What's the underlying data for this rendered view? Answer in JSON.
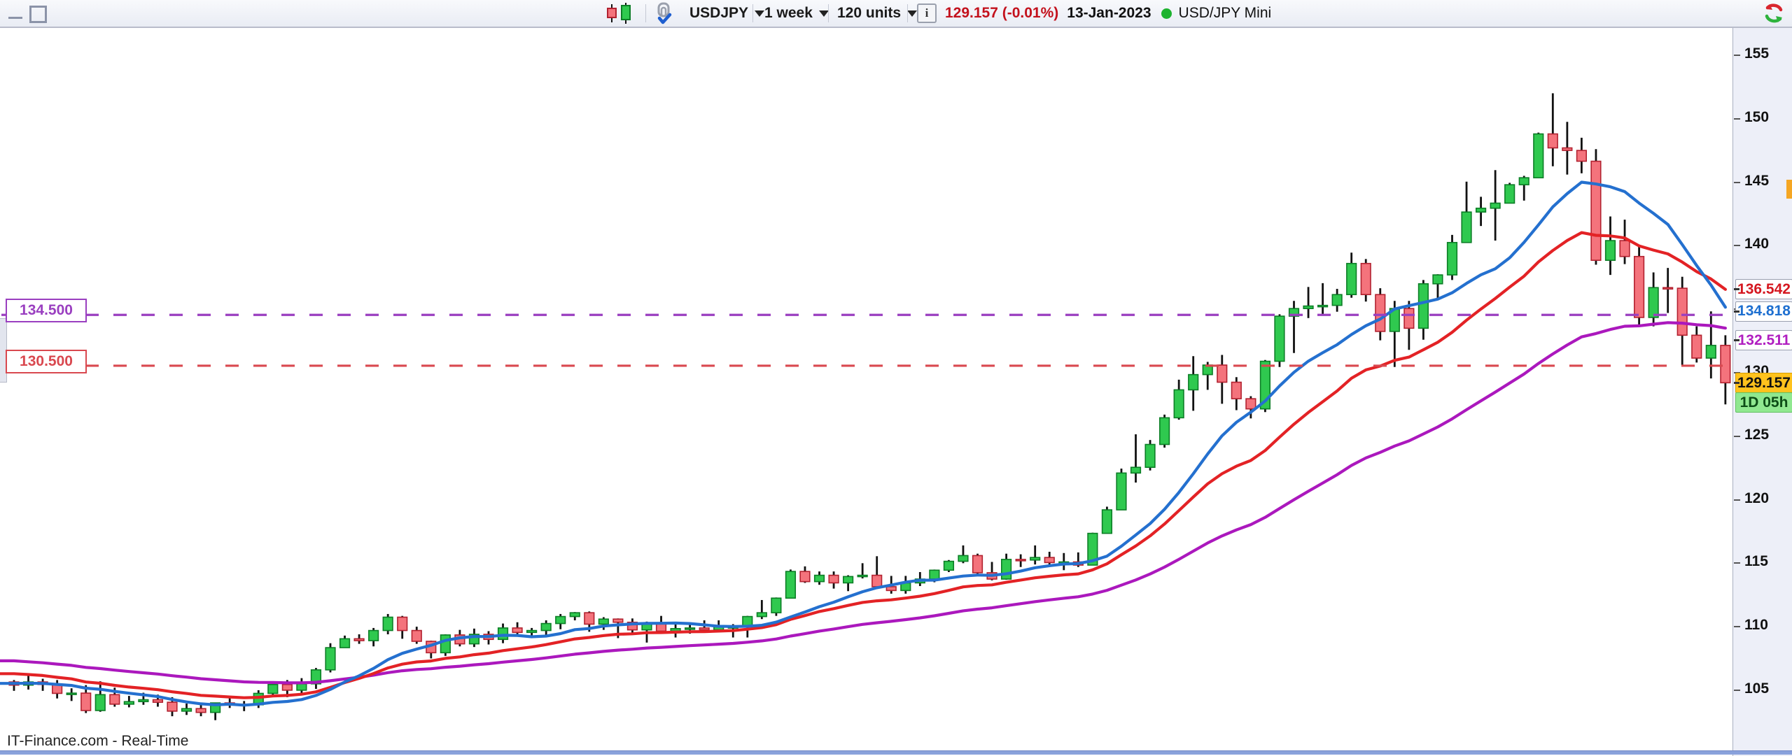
{
  "window": {
    "minimize_icon": "minimize",
    "restore_icon": "restore-window"
  },
  "toolbar": {
    "chart_type_icon": "candlestick-chart",
    "link_icon": "clip-with-check",
    "symbol_selector": {
      "label": "USDJPY"
    },
    "timeframe_selector": {
      "label": "1 week"
    },
    "units_selector": {
      "label": "120 units"
    },
    "info_icon_glyph": "i",
    "quote": {
      "price_and_change": "129.157 (-0.01%)",
      "date": "13-Jan-2023",
      "market_status_color": "#1db32f",
      "market_name": "USD/JPY Mini"
    },
    "refresh_icon": "refresh-red-green-arrows"
  },
  "price_axis": {
    "chips": [
      {
        "text": "136.542",
        "type": "ma-red",
        "text_color": "#d51820",
        "bg": "#ffffff",
        "price": 136.542
      },
      {
        "text": "134.818",
        "type": "ma-blue",
        "text_color": "#1e6fd0",
        "bg": "#ffffff",
        "price": 134.818
      },
      {
        "text": "132.511",
        "type": "ma-purple",
        "text_color": "#b01ec0",
        "bg": "#ffffff",
        "price": 132.511
      },
      {
        "text": "129.157",
        "type": "last-price",
        "text_color": "#111111",
        "bg": "#ffc21d",
        "price": 129.157
      },
      {
        "text": "1D 05h",
        "type": "countdown",
        "text_color": "#0d4d17",
        "bg": "#90e890"
      }
    ],
    "marker_color": "#f5a623"
  },
  "annotations": {
    "hlines": [
      {
        "label": "134.500",
        "price": 134.5,
        "color": "#9a3fc0"
      },
      {
        "label": "130.500",
        "price": 130.5,
        "color": "#d9484f"
      }
    ]
  },
  "footer": {
    "attribution": "IT-Finance.com - Real-Time"
  },
  "chart_data": {
    "type": "candlestick",
    "symbol": "USDJPY",
    "timeframe": "1 week",
    "units": 120,
    "last_price": 129.157,
    "title": "USD/JPY Mini weekly candlestick chart",
    "y_axis": {
      "tick_values": [
        155,
        150,
        145,
        140,
        135,
        130,
        125,
        120,
        115,
        110,
        105
      ],
      "ylim": [
        100.4,
        157.2
      ],
      "grid": false
    },
    "x_axis": {
      "labels_visible": false
    },
    "candle_colors": {
      "up_fill": "#2fc94f",
      "up_border": "#0c7e26",
      "down_fill": "#f4737c",
      "down_border": "#b22230",
      "wick": "#111111"
    },
    "moving_averages": [
      {
        "name": "fast",
        "kind": "sma",
        "period": 10,
        "color": "#2470cf",
        "seed": 105.5,
        "end_value": 134.818
      },
      {
        "name": "medium",
        "kind": "ema",
        "alpha": 0.1,
        "color": "#e32225",
        "seed": 106.35,
        "end_value": 136.542
      },
      {
        "name": "slow",
        "kind": "ema",
        "alpha": 0.044,
        "color": "#ab18bd",
        "seed": 107.35,
        "end_value": 132.511
      }
    ],
    "ohlc": [
      [
        105.6,
        105.75,
        104.9,
        105.35
      ],
      [
        105.35,
        106.1,
        105.0,
        105.6
      ],
      [
        105.6,
        105.85,
        104.9,
        105.4
      ],
      [
        105.4,
        105.75,
        104.3,
        104.7
      ],
      [
        104.7,
        105.1,
        104.1,
        104.72
      ],
      [
        104.72,
        105.35,
        103.15,
        103.35
      ],
      [
        103.35,
        105.65,
        103.25,
        104.6
      ],
      [
        104.6,
        105.15,
        103.65,
        103.85
      ],
      [
        103.85,
        104.5,
        103.6,
        104.05
      ],
      [
        104.05,
        104.75,
        103.8,
        104.2
      ],
      [
        104.2,
        104.6,
        103.65,
        104.0
      ],
      [
        104.0,
        104.4,
        102.9,
        103.3
      ],
      [
        103.3,
        103.9,
        103.0,
        103.5
      ],
      [
        103.5,
        103.85,
        102.9,
        103.2
      ],
      [
        103.2,
        103.95,
        102.59,
        103.95
      ],
      [
        103.95,
        104.4,
        103.55,
        103.85
      ],
      [
        103.85,
        104.1,
        103.3,
        103.8
      ],
      [
        103.8,
        104.95,
        103.55,
        104.7
      ],
      [
        104.7,
        105.45,
        104.55,
        105.4
      ],
      [
        105.4,
        105.75,
        104.4,
        104.95
      ],
      [
        104.95,
        105.9,
        104.55,
        105.45
      ],
      [
        105.45,
        106.7,
        105.05,
        106.55
      ],
      [
        106.55,
        108.65,
        106.35,
        108.3
      ],
      [
        108.3,
        109.25,
        108.3,
        109.0
      ],
      [
        109.0,
        109.35,
        108.6,
        108.85
      ],
      [
        108.85,
        109.85,
        108.4,
        109.65
      ],
      [
        109.65,
        110.95,
        109.35,
        110.7
      ],
      [
        110.7,
        110.8,
        109.0,
        109.65
      ],
      [
        109.65,
        109.95,
        108.6,
        108.8
      ],
      [
        108.8,
        108.85,
        107.45,
        107.9
      ],
      [
        107.9,
        109.35,
        107.65,
        109.3
      ],
      [
        109.3,
        109.7,
        108.4,
        108.6
      ],
      [
        108.6,
        109.8,
        108.35,
        109.35
      ],
      [
        109.35,
        109.6,
        108.55,
        108.95
      ],
      [
        108.95,
        110.2,
        108.65,
        109.85
      ],
      [
        109.85,
        110.3,
        109.35,
        109.5
      ],
      [
        109.5,
        109.85,
        109.2,
        109.65
      ],
      [
        109.65,
        110.45,
        109.25,
        110.2
      ],
      [
        110.2,
        110.95,
        109.75,
        110.75
      ],
      [
        110.75,
        111.1,
        110.45,
        111.05
      ],
      [
        111.05,
        111.15,
        109.55,
        110.15
      ],
      [
        110.15,
        110.7,
        109.7,
        110.55
      ],
      [
        110.55,
        110.6,
        109.05,
        110.3
      ],
      [
        110.3,
        110.6,
        109.35,
        109.7
      ],
      [
        109.7,
        110.35,
        108.7,
        110.25
      ],
      [
        110.25,
        110.8,
        109.55,
        109.6
      ],
      [
        109.6,
        110.25,
        109.1,
        109.8
      ],
      [
        109.8,
        110.25,
        109.4,
        109.85
      ],
      [
        109.85,
        110.45,
        109.6,
        109.7
      ],
      [
        109.7,
        110.45,
        109.6,
        109.95
      ],
      [
        109.95,
        110.15,
        109.1,
        109.95
      ],
      [
        109.95,
        110.8,
        109.1,
        110.75
      ],
      [
        110.75,
        112.05,
        110.55,
        111.05
      ],
      [
        111.05,
        112.25,
        110.8,
        112.2
      ],
      [
        112.2,
        114.45,
        112.2,
        114.3
      ],
      [
        114.3,
        114.7,
        113.4,
        113.5
      ],
      [
        113.5,
        114.3,
        113.25,
        114.0
      ],
      [
        114.0,
        114.3,
        112.95,
        113.4
      ],
      [
        113.4,
        114.0,
        112.75,
        113.9
      ],
      [
        113.9,
        114.95,
        113.75,
        114.0
      ],
      [
        114.0,
        115.5,
        113.05,
        113.1
      ],
      [
        113.1,
        113.95,
        112.55,
        112.8
      ],
      [
        112.8,
        113.95,
        112.55,
        113.4
      ],
      [
        113.4,
        114.25,
        113.15,
        113.7
      ],
      [
        113.7,
        114.45,
        113.45,
        114.4
      ],
      [
        114.4,
        115.2,
        114.25,
        115.1
      ],
      [
        115.1,
        116.35,
        114.95,
        115.55
      ],
      [
        115.55,
        115.7,
        113.95,
        114.2
      ],
      [
        114.2,
        115.05,
        113.6,
        113.7
      ],
      [
        113.7,
        115.7,
        113.65,
        115.25
      ],
      [
        115.25,
        115.65,
        114.65,
        115.2
      ],
      [
        115.2,
        116.35,
        114.85,
        115.4
      ],
      [
        115.4,
        115.85,
        114.8,
        115.0
      ],
      [
        115.0,
        115.75,
        114.4,
        115.05
      ],
      [
        115.05,
        115.8,
        114.65,
        114.8
      ],
      [
        114.8,
        117.35,
        114.8,
        117.3
      ],
      [
        117.3,
        119.4,
        117.3,
        119.15
      ],
      [
        119.15,
        122.4,
        119.15,
        122.05
      ],
      [
        122.05,
        125.1,
        121.3,
        122.5
      ],
      [
        122.5,
        124.65,
        122.25,
        124.3
      ],
      [
        124.3,
        126.65,
        124.05,
        126.4
      ],
      [
        126.4,
        129.4,
        126.25,
        128.6
      ],
      [
        128.6,
        131.25,
        126.95,
        129.8
      ],
      [
        129.8,
        130.8,
        128.6,
        130.55
      ],
      [
        130.55,
        131.35,
        127.5,
        129.2
      ],
      [
        129.2,
        129.6,
        127.0,
        127.9
      ],
      [
        127.9,
        128.1,
        126.35,
        127.1
      ],
      [
        127.1,
        130.95,
        126.85,
        130.85
      ],
      [
        130.85,
        134.55,
        130.4,
        134.4
      ],
      [
        134.4,
        135.6,
        131.5,
        135.0
      ],
      [
        135.0,
        136.7,
        134.25,
        135.2
      ],
      [
        135.2,
        137.0,
        134.5,
        135.25
      ],
      [
        135.25,
        136.55,
        134.75,
        136.1
      ],
      [
        136.1,
        139.4,
        135.85,
        138.55
      ],
      [
        138.55,
        138.9,
        135.55,
        136.1
      ],
      [
        136.1,
        136.6,
        132.5,
        133.2
      ],
      [
        133.2,
        135.6,
        130.4,
        135.0
      ],
      [
        135.0,
        135.6,
        131.75,
        133.45
      ],
      [
        133.45,
        137.25,
        132.55,
        136.95
      ],
      [
        136.95,
        137.7,
        135.8,
        137.65
      ],
      [
        137.65,
        140.8,
        137.25,
        140.2
      ],
      [
        140.2,
        144.99,
        140.2,
        142.6
      ],
      [
        142.6,
        143.8,
        141.5,
        142.9
      ],
      [
        142.9,
        145.9,
        140.35,
        143.3
      ],
      [
        143.3,
        144.9,
        143.3,
        144.75
      ],
      [
        144.75,
        145.45,
        143.5,
        145.3
      ],
      [
        145.3,
        148.85,
        145.3,
        148.75
      ],
      [
        148.75,
        151.95,
        146.2,
        147.65
      ],
      [
        147.65,
        149.7,
        145.55,
        147.45
      ],
      [
        147.45,
        148.45,
        145.65,
        146.6
      ],
      [
        146.6,
        147.55,
        138.45,
        138.8
      ],
      [
        138.8,
        142.25,
        137.65,
        140.35
      ],
      [
        140.35,
        142.0,
        138.5,
        139.1
      ],
      [
        139.1,
        139.9,
        133.6,
        134.3
      ],
      [
        134.3,
        137.85,
        133.6,
        136.65
      ],
      [
        136.65,
        138.2,
        134.65,
        136.6
      ],
      [
        136.6,
        137.5,
        130.55,
        132.9
      ],
      [
        132.9,
        133.6,
        130.75,
        131.1
      ],
      [
        131.1,
        134.78,
        129.5,
        132.1
      ],
      [
        132.1,
        132.9,
        127.45,
        129.157
      ]
    ]
  }
}
